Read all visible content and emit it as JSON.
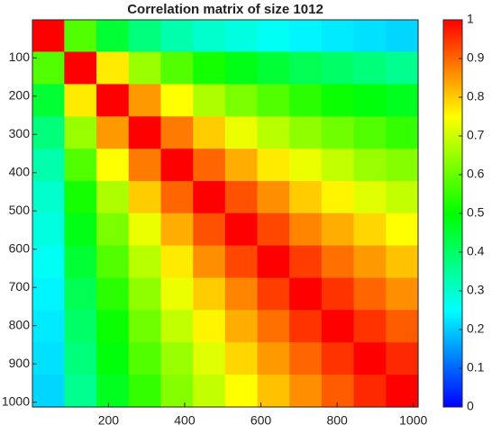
{
  "chart_data": {
    "type": "heatmap",
    "title": "Correlation matrix of size 1012",
    "x": [
      42,
      126,
      211,
      295,
      380,
      464,
      548,
      633,
      717,
      801,
      886,
      970
    ],
    "y": [
      42,
      126,
      211,
      295,
      380,
      464,
      548,
      633,
      717,
      801,
      886,
      970
    ],
    "z": [
      [
        1,
        0.58,
        0.45,
        0.38,
        0.33,
        0.3,
        0.28,
        0.26,
        0.24,
        0.23,
        0.22,
        0.21
      ],
      [
        0.58,
        1,
        0.77,
        0.65,
        0.58,
        0.52,
        0.48,
        0.45,
        0.42,
        0.4,
        0.38,
        0.36
      ],
      [
        0.45,
        0.77,
        1,
        0.85,
        0.75,
        0.67,
        0.62,
        0.58,
        0.54,
        0.51,
        0.49,
        0.47
      ],
      [
        0.38,
        0.65,
        0.85,
        1,
        0.88,
        0.8,
        0.73,
        0.68,
        0.64,
        0.61,
        0.58,
        0.55
      ],
      [
        0.33,
        0.58,
        0.75,
        0.88,
        1,
        0.9,
        0.83,
        0.77,
        0.73,
        0.69,
        0.65,
        0.63
      ],
      [
        0.3,
        0.52,
        0.67,
        0.8,
        0.9,
        1,
        0.92,
        0.86,
        0.8,
        0.76,
        0.72,
        0.69
      ],
      [
        0.28,
        0.48,
        0.62,
        0.73,
        0.83,
        0.92,
        1,
        0.93,
        0.87,
        0.83,
        0.79,
        0.75
      ],
      [
        0.26,
        0.45,
        0.58,
        0.68,
        0.77,
        0.86,
        0.93,
        1,
        0.94,
        0.89,
        0.85,
        0.81
      ],
      [
        0.24,
        0.42,
        0.54,
        0.64,
        0.73,
        0.8,
        0.87,
        0.94,
        1,
        0.95,
        0.9,
        0.86
      ],
      [
        0.23,
        0.4,
        0.51,
        0.61,
        0.69,
        0.76,
        0.83,
        0.89,
        0.95,
        1,
        0.95,
        0.91
      ],
      [
        0.22,
        0.38,
        0.49,
        0.58,
        0.65,
        0.72,
        0.79,
        0.85,
        0.9,
        0.95,
        1,
        0.96
      ],
      [
        0.21,
        0.36,
        0.47,
        0.55,
        0.63,
        0.69,
        0.75,
        0.81,
        0.86,
        0.91,
        0.96,
        1
      ]
    ],
    "xlim": [
      0.5,
      1012.5
    ],
    "ylim": [
      0.5,
      1012.5
    ],
    "y_reversed": true,
    "xticks": [
      200,
      400,
      600,
      800,
      1000
    ],
    "yticks": [
      100,
      200,
      300,
      400,
      500,
      600,
      700,
      800,
      900,
      1000
    ],
    "clim": [
      0,
      1
    ],
    "cticks": [
      0,
      0.1,
      0.2,
      0.3,
      0.4,
      0.5,
      0.6,
      0.7,
      0.8,
      0.9,
      1
    ],
    "colormap": [
      [
        0,
        "#0000ff"
      ],
      [
        0.25,
        "#00ffff"
      ],
      [
        0.5,
        "#00ff00"
      ],
      [
        0.75,
        "#ffff00"
      ],
      [
        1,
        "#ff0000"
      ]
    ]
  }
}
